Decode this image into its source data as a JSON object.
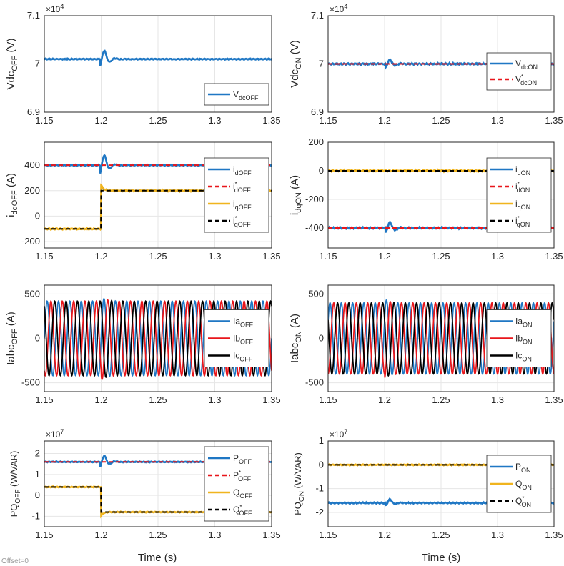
{
  "figure": {
    "offset_label": "Offset=0",
    "xlabel": "Time (s)",
    "colors": {
      "blue": "#1f77c4",
      "red": "#e8161b",
      "orange": "#f0b41e",
      "black": "#000000",
      "grid": "#e6e6e6",
      "axis": "#262626"
    }
  },
  "chart_data": [
    {
      "id": "vdc_off",
      "type": "line",
      "ylabel_main": "Vdc",
      "ylabel_sub": "OFF",
      "ylabel_unit": "(V)",
      "exponent_base": "×10",
      "exponent_power": "4",
      "xlim": [
        1.15,
        1.35
      ],
      "xticks": [
        "1.15",
        "1.2",
        "1.25",
        "1.3",
        "1.35"
      ],
      "ylim": [
        6.9,
        7.1
      ],
      "yticks": [
        {
          "v": 7.1,
          "t": "7.1"
        },
        {
          "v": 7.0,
          "t": "7"
        },
        {
          "v": 6.9,
          "t": "6.9"
        }
      ],
      "legend": {
        "position": "bottom-right",
        "entries": [
          {
            "main": "V",
            "sub": "dcOFF",
            "sup": "",
            "color": "blue",
            "dash": false
          }
        ]
      },
      "series": [
        {
          "name": "VdcOFF",
          "color": "blue",
          "dash": false,
          "base": 7.01,
          "disturbance": {
            "t": 1.203,
            "amp": 0.018
          },
          "noise": 0.001
        }
      ]
    },
    {
      "id": "vdc_on",
      "type": "line",
      "ylabel_main": "Vdc",
      "ylabel_sub": "ON",
      "ylabel_unit": "(V)",
      "exponent_base": "×10",
      "exponent_power": "4",
      "xlim": [
        1.15,
        1.35
      ],
      "xticks": [
        "1.15",
        "1.2",
        "1.25",
        "1.3",
        "1.35"
      ],
      "ylim": [
        6.9,
        7.1
      ],
      "yticks": [
        {
          "v": 7.1,
          "t": "7.1"
        },
        {
          "v": 7.0,
          "t": "7"
        },
        {
          "v": 6.9,
          "t": "6.9"
        }
      ],
      "legend": {
        "position": "top-right",
        "entries": [
          {
            "main": "V",
            "sub": "dcON",
            "sup": "",
            "color": "blue",
            "dash": false
          },
          {
            "main": "V",
            "sub": "dcON",
            "sup": "*",
            "color": "red",
            "dash": true
          }
        ]
      },
      "series": [
        {
          "name": "VdcON",
          "color": "blue",
          "dash": false,
          "base": 7.0,
          "disturbance": {
            "t": 1.205,
            "amp": 0.009
          },
          "noise": 0.0015
        },
        {
          "name": "VdcON*",
          "color": "red",
          "dash": true,
          "base": 7.0,
          "disturbance": null,
          "noise": 0
        }
      ]
    },
    {
      "id": "idq_off",
      "type": "line",
      "ylabel_main": "i",
      "ylabel_sub": "dqOFF",
      "ylabel_unit": "(A)",
      "xlim": [
        1.15,
        1.35
      ],
      "xticks": [
        "1.15",
        "1.2",
        "1.25",
        "1.3",
        "1.35"
      ],
      "ylim": [
        -250,
        580
      ],
      "yticks": [
        {
          "v": 400,
          "t": "400"
        },
        {
          "v": 200,
          "t": "200"
        },
        {
          "v": 0,
          "t": "0"
        },
        {
          "v": -200,
          "t": "-200"
        }
      ],
      "legend": {
        "position": "right",
        "entries": [
          {
            "main": "i",
            "sub": "dOFF",
            "sup": "",
            "color": "blue",
            "dash": false
          },
          {
            "main": "i",
            "sub": "dOFF",
            "sup": "*",
            "color": "red",
            "dash": true
          },
          {
            "main": "i",
            "sub": "qOFF",
            "sup": "",
            "color": "orange",
            "dash": false
          },
          {
            "main": "i",
            "sub": "qOFF",
            "sup": "*",
            "color": "black",
            "dash": true
          }
        ]
      },
      "series": [
        {
          "name": "idOFF",
          "color": "blue",
          "dash": false,
          "base": 400,
          "disturbance": {
            "t": 1.203,
            "amp": 80
          },
          "noise": 4
        },
        {
          "name": "idOFF*",
          "color": "red",
          "dash": true,
          "base": 400,
          "disturbance": null,
          "noise": 0
        },
        {
          "name": "iqOFF",
          "color": "orange",
          "dash": false,
          "step": {
            "t": 1.2,
            "from": -100,
            "to": 200
          },
          "noise": 5
        },
        {
          "name": "iqOFF*",
          "color": "black",
          "dash": true,
          "step": {
            "t": 1.2,
            "from": -100,
            "to": 200
          },
          "noise": 0
        }
      ]
    },
    {
      "id": "idq_on",
      "type": "line",
      "ylabel_main": "i",
      "ylabel_sub": "dqON",
      "ylabel_unit": "(A)",
      "xlim": [
        1.15,
        1.35
      ],
      "xticks": [
        "1.15",
        "1.2",
        "1.25",
        "1.3",
        "1.35"
      ],
      "ylim": [
        -540,
        200
      ],
      "yticks": [
        {
          "v": 200,
          "t": "200"
        },
        {
          "v": 0,
          "t": "0"
        },
        {
          "v": -200,
          "t": "-200"
        },
        {
          "v": -400,
          "t": "-400"
        }
      ],
      "legend": {
        "position": "right",
        "entries": [
          {
            "main": "i",
            "sub": "dON",
            "sup": "",
            "color": "blue",
            "dash": false
          },
          {
            "main": "i",
            "sub": "dON",
            "sup": "*",
            "color": "red",
            "dash": true
          },
          {
            "main": "i",
            "sub": "qON",
            "sup": "",
            "color": "orange",
            "dash": false
          },
          {
            "main": "i",
            "sub": "qON",
            "sup": "*",
            "color": "black",
            "dash": true
          }
        ]
      },
      "series": [
        {
          "name": "idON",
          "color": "blue",
          "dash": false,
          "base": -400,
          "disturbance": {
            "t": 1.205,
            "amp": 40
          },
          "noise": 5
        },
        {
          "name": "idON*",
          "color": "red",
          "dash": true,
          "base": -400,
          "disturbance": null,
          "noise": 0
        },
        {
          "name": "iqON",
          "color": "orange",
          "dash": false,
          "base": 0,
          "disturbance": null,
          "noise": 5
        },
        {
          "name": "iqON*",
          "color": "black",
          "dash": true,
          "base": 0,
          "disturbance": null,
          "noise": 0
        }
      ]
    },
    {
      "id": "iabc_off",
      "type": "line",
      "ylabel_main": "Iabc",
      "ylabel_sub": "OFF",
      "ylabel_unit": "(A)",
      "xlim": [
        1.15,
        1.35
      ],
      "xticks": [
        "1.15",
        "1.2",
        "1.25",
        "1.3",
        "1.35"
      ],
      "ylim": [
        -600,
        600
      ],
      "yticks": [
        {
          "v": 500,
          "t": "500"
        },
        {
          "v": 0,
          "t": "0"
        },
        {
          "v": -500,
          "t": "-500"
        }
      ],
      "legend": {
        "position": "right",
        "entries": [
          {
            "main": "Ia",
            "sub": "OFF",
            "sup": "",
            "color": "blue",
            "dash": false
          },
          {
            "main": "Ib",
            "sub": "OFF",
            "sup": "",
            "color": "red",
            "dash": false
          },
          {
            "main": "Ic",
            "sub": "OFF",
            "sup": "",
            "color": "black",
            "dash": false
          }
        ]
      },
      "series": [
        {
          "name": "IaOFF",
          "color": "blue",
          "sine": {
            "amp": 420,
            "freq": 100,
            "phase": 0
          }
        },
        {
          "name": "IbOFF",
          "color": "red",
          "sine": {
            "amp": 420,
            "freq": 100,
            "phase": -2.094
          }
        },
        {
          "name": "IcOFF",
          "color": "black",
          "sine": {
            "amp": 420,
            "freq": 100,
            "phase": 2.094
          }
        }
      ]
    },
    {
      "id": "iabc_on",
      "type": "line",
      "ylabel_main": "Iabc",
      "ylabel_sub": "ON",
      "ylabel_unit": "(A)",
      "xlim": [
        1.15,
        1.35
      ],
      "xticks": [
        "1.15",
        "1.2",
        "1.25",
        "1.3",
        "1.35"
      ],
      "ylim": [
        -600,
        600
      ],
      "yticks": [
        {
          "v": 500,
          "t": "500"
        },
        {
          "v": 0,
          "t": "0"
        },
        {
          "v": -500,
          "t": "-500"
        }
      ],
      "legend": {
        "position": "right",
        "entries": [
          {
            "main": "Ia",
            "sub": "ON",
            "sup": "",
            "color": "blue",
            "dash": false
          },
          {
            "main": "Ib",
            "sub": "ON",
            "sup": "",
            "color": "red",
            "dash": false
          },
          {
            "main": "Ic",
            "sub": "ON",
            "sup": "",
            "color": "black",
            "dash": false
          }
        ]
      },
      "series": [
        {
          "name": "IaON",
          "color": "blue",
          "sine": {
            "amp": 400,
            "freq": 100,
            "phase": 0.5
          }
        },
        {
          "name": "IbON",
          "color": "red",
          "sine": {
            "amp": 400,
            "freq": 100,
            "phase": -1.594
          }
        },
        {
          "name": "IcON",
          "color": "black",
          "sine": {
            "amp": 400,
            "freq": 100,
            "phase": 2.594
          }
        }
      ]
    },
    {
      "id": "pq_off",
      "type": "line",
      "ylabel_main": "PQ",
      "ylabel_sub": "OFF",
      "ylabel_unit": "(W/VAR)",
      "exponent_base": "×10",
      "exponent_power": "7",
      "xlim": [
        1.15,
        1.35
      ],
      "xticks": [
        "1.15",
        "1.2",
        "1.25",
        "1.3",
        "1.35"
      ],
      "ylim": [
        -1.5,
        2.6
      ],
      "yticks": [
        {
          "v": 2,
          "t": "2"
        },
        {
          "v": 1,
          "t": "1"
        },
        {
          "v": 0,
          "t": "0"
        },
        {
          "v": -1,
          "t": "-1"
        }
      ],
      "legend": {
        "position": "right",
        "entries": [
          {
            "main": "P",
            "sub": "OFF",
            "sup": "",
            "color": "blue",
            "dash": false
          },
          {
            "main": "P",
            "sub": "OFF",
            "sup": "*",
            "color": "red",
            "dash": true
          },
          {
            "main": "Q",
            "sub": "OFF",
            "sup": "",
            "color": "orange",
            "dash": false
          },
          {
            "main": "Q",
            "sub": "OFF",
            "sup": "*",
            "color": "black",
            "dash": true
          }
        ]
      },
      "series": [
        {
          "name": "POFF",
          "color": "blue",
          "dash": false,
          "base": 1.6,
          "disturbance": {
            "t": 1.203,
            "amp": 0.3
          },
          "noise": 0.02
        },
        {
          "name": "POFF*",
          "color": "red",
          "dash": true,
          "base": 1.6,
          "disturbance": null,
          "noise": 0
        },
        {
          "name": "QOFF",
          "color": "orange",
          "dash": false,
          "step": {
            "t": 1.2,
            "from": 0.4,
            "to": -0.8
          },
          "noise": 0.02
        },
        {
          "name": "QOFF*",
          "color": "black",
          "dash": true,
          "step": {
            "t": 1.2,
            "from": 0.4,
            "to": -0.8
          },
          "noise": 0
        }
      ]
    },
    {
      "id": "pq_on",
      "type": "line",
      "ylabel_main": "PQ",
      "ylabel_sub": "ON",
      "ylabel_unit": "(W/VAR)",
      "exponent_base": "×10",
      "exponent_power": "7",
      "xlim": [
        1.15,
        1.35
      ],
      "xticks": [
        "1.15",
        "1.2",
        "1.25",
        "1.3",
        "1.35"
      ],
      "ylim": [
        -2.6,
        1.0
      ],
      "yticks": [
        {
          "v": 1,
          "t": "1"
        },
        {
          "v": 0,
          "t": "0"
        },
        {
          "v": -1,
          "t": "-1"
        },
        {
          "v": -2,
          "t": "-2"
        }
      ],
      "legend": {
        "position": "right",
        "entries": [
          {
            "main": "P",
            "sub": "ON",
            "sup": "",
            "color": "blue",
            "dash": false
          },
          {
            "main": "Q",
            "sub": "ON",
            "sup": "",
            "color": "orange",
            "dash": false
          },
          {
            "main": "Q",
            "sub": "ON",
            "sup": "*",
            "color": "black",
            "dash": true
          }
        ]
      },
      "series": [
        {
          "name": "PON",
          "color": "blue",
          "dash": false,
          "base": -1.6,
          "disturbance": {
            "t": 1.205,
            "amp": 0.15
          },
          "noise": 0.025
        },
        {
          "name": "QON",
          "color": "orange",
          "dash": false,
          "base": 0,
          "disturbance": null,
          "noise": 0.02
        },
        {
          "name": "QON*",
          "color": "black",
          "dash": true,
          "base": 0,
          "disturbance": null,
          "noise": 0
        }
      ]
    }
  ]
}
